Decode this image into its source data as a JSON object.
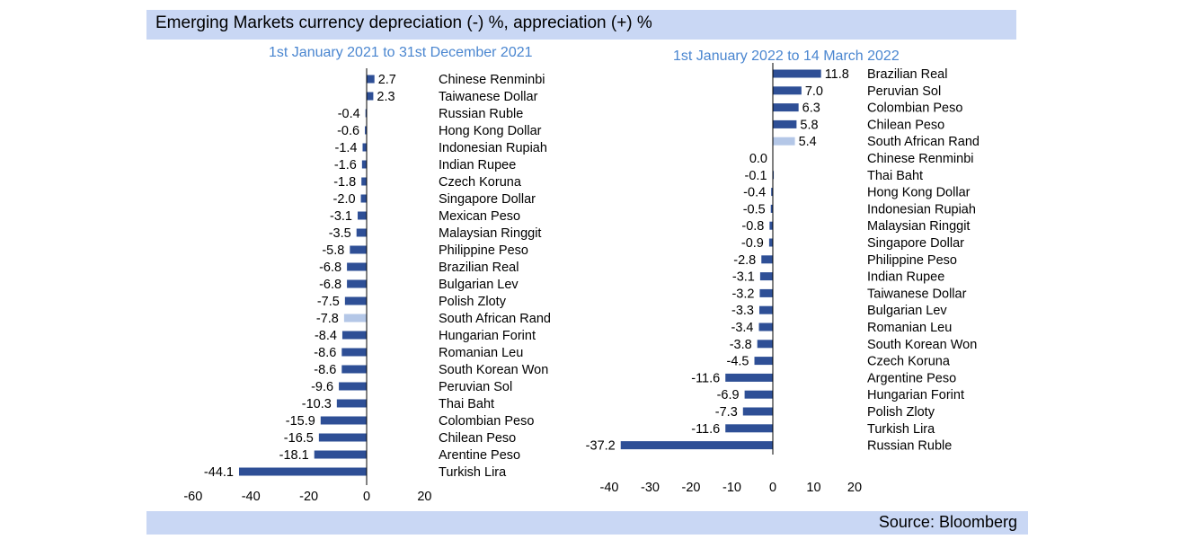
{
  "header": {
    "title": "Emerging Markets currency depreciation (-) %, appreciation (+) %"
  },
  "footer": {
    "source": "Source: Bloomberg"
  },
  "colors": {
    "band": "#c9d7f4",
    "bar": "#2e4f96",
    "highlight": "#b4c7e7",
    "title_accent": "#4a86d0"
  },
  "chart_data": [
    {
      "type": "bar",
      "orientation": "horizontal",
      "title": "1st January 2021 to 31st December 2021",
      "xlim": [
        -60,
        20
      ],
      "xticks": [
        -60,
        -40,
        -20,
        0,
        20
      ],
      "highlight_category": "South African Rand",
      "categories": [
        "Chinese Renminbi",
        "Taiwanese Dollar",
        "Russian Ruble",
        "Hong Kong Dollar",
        "Indonesian Rupiah",
        "Indian Rupee",
        "Czech Koruna",
        "Singapore Dollar",
        "Mexican Peso",
        "Malaysian Ringgit",
        "Philippine Peso",
        "Brazilian Real",
        "Bulgarian Lev",
        "Polish  Zloty",
        "South African Rand",
        "Hungarian Forint",
        "Romanian Leu",
        "South Korean Won",
        "Peruvian Sol",
        "Thai Baht",
        "Colombian Peso",
        "Chilean Peso",
        "Arentine Peso",
        "Turkish Lira"
      ],
      "values": [
        2.7,
        2.3,
        -0.4,
        -0.6,
        -1.4,
        -1.6,
        -1.8,
        -2.0,
        -3.1,
        -3.5,
        -5.8,
        -6.8,
        -6.8,
        -7.5,
        -7.8,
        -8.4,
        -8.6,
        -8.6,
        -9.6,
        -10.3,
        -15.9,
        -16.5,
        -18.1,
        -44.1
      ]
    },
    {
      "type": "bar",
      "orientation": "horizontal",
      "title": "1st January 2022 to 14 March  2022",
      "xlim": [
        -40,
        20
      ],
      "xticks": [
        -40,
        -30,
        -20,
        -10,
        0,
        10,
        20
      ],
      "highlight_category": "South African Rand",
      "categories": [
        "Brazilian Real",
        "Peruvian Sol",
        "Colombian Peso",
        "Chilean Peso",
        "South African Rand",
        "Chinese Renminbi",
        "Thai Baht",
        "Hong Kong Dollar",
        "Indonesian Rupiah",
        "Malaysian Ringgit",
        "Singapore Dollar",
        "Philippine Peso",
        "Indian Rupee",
        "Taiwanese Dollar",
        "Bulgarian Lev",
        "Romanian Leu",
        "South Korean Won",
        "Czech Koruna",
        "Argentine Peso",
        "Hungarian Forint",
        "Polish Zloty",
        "Turkish Lira",
        "Russian Ruble"
      ],
      "values": [
        11.8,
        7.0,
        6.3,
        5.8,
        5.4,
        0.0,
        -0.1,
        -0.4,
        -0.5,
        -0.8,
        -0.9,
        -2.8,
        -3.1,
        -3.2,
        -3.3,
        -3.4,
        -3.8,
        -4.5,
        -11.6,
        -6.9,
        -7.3,
        -11.6,
        -37.2
      ]
    }
  ]
}
